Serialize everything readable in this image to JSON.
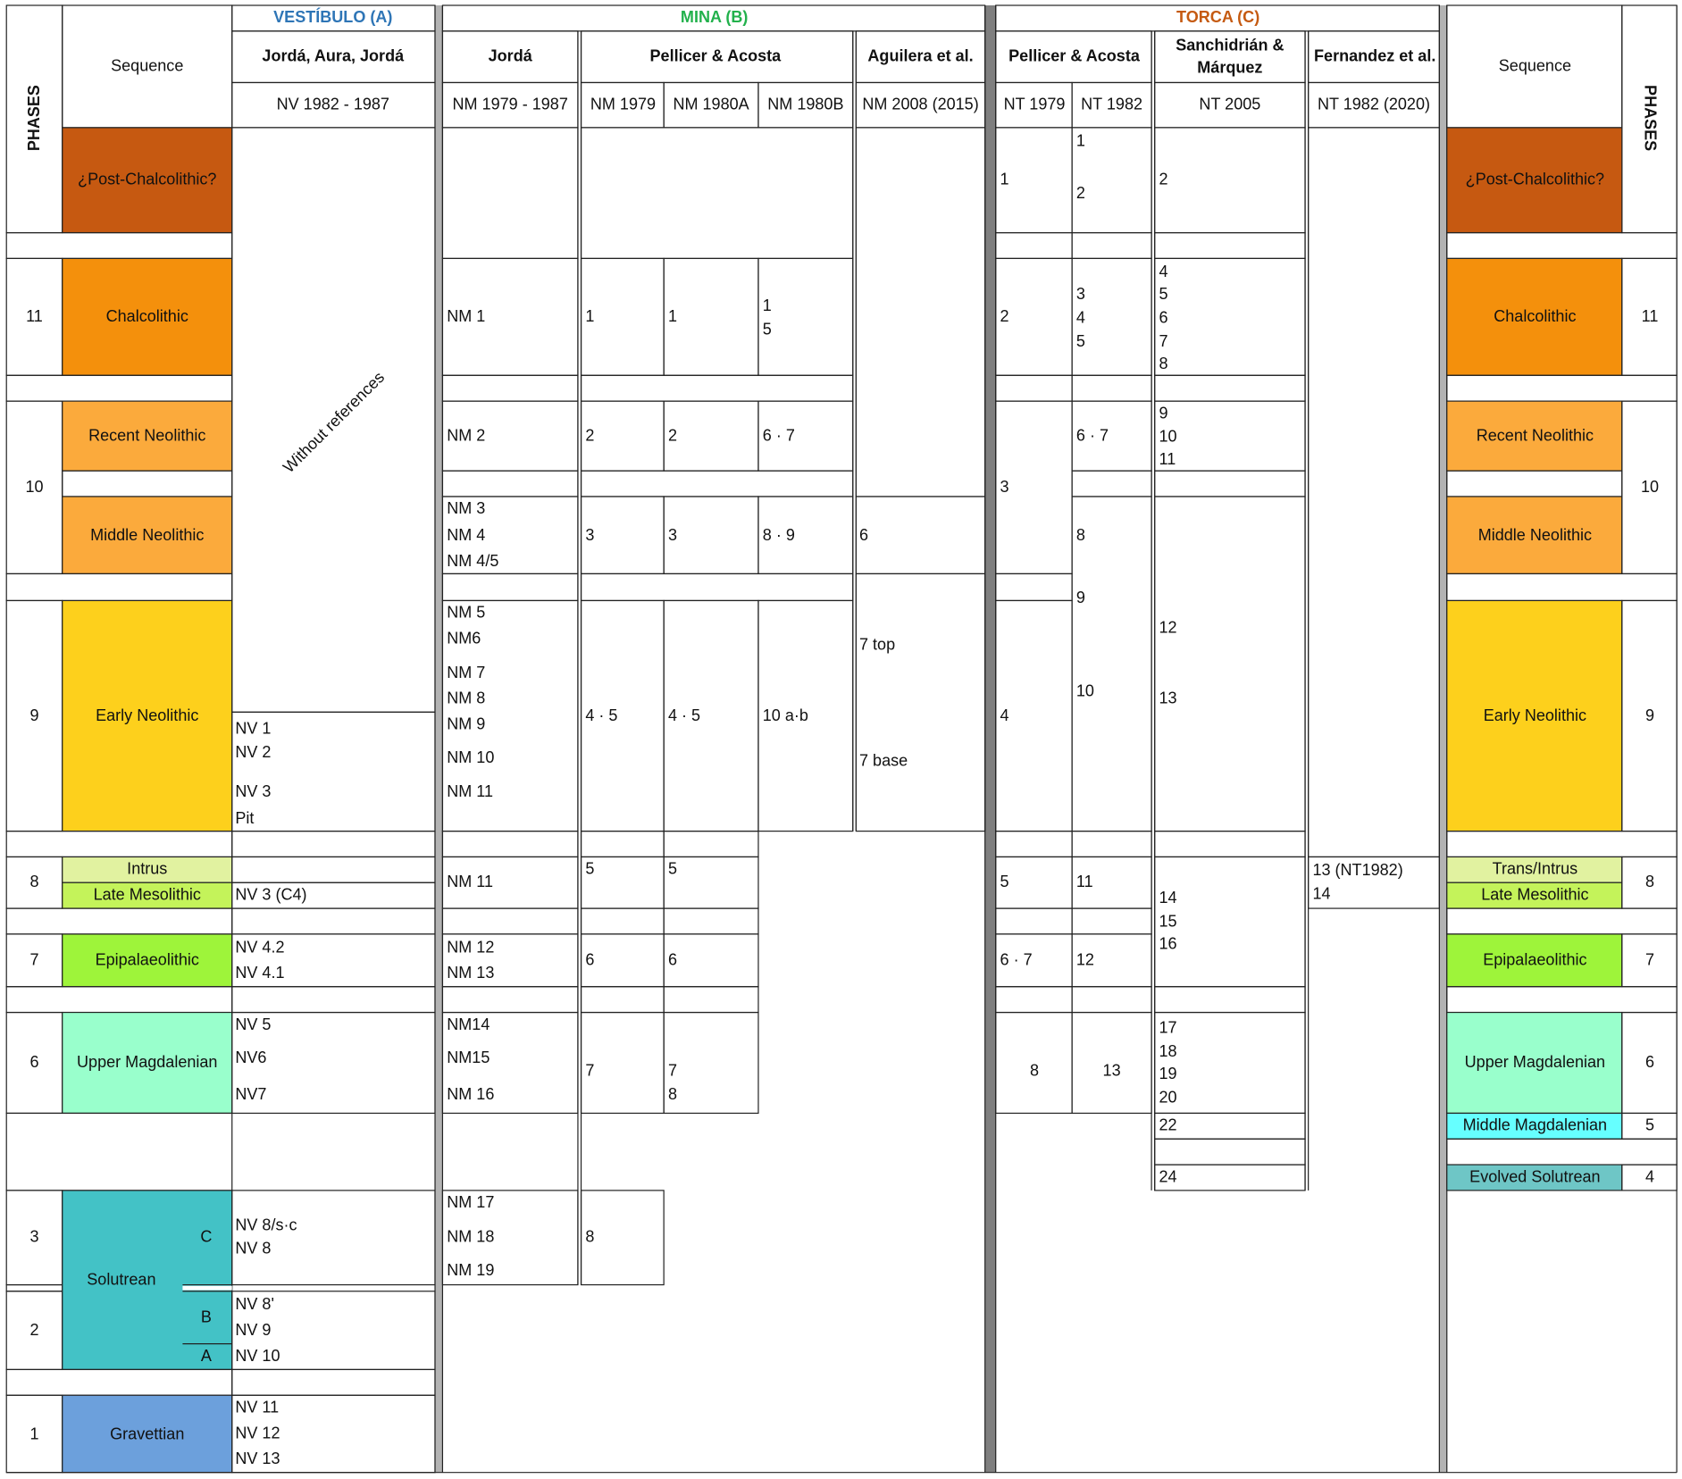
{
  "colors": {
    "vestibulo": "#2e75b6",
    "mina": "#22b14c",
    "torca": "#c55a11",
    "post_chalcolithic": "#c65911",
    "chalcolithic": "#f4900c",
    "neolithic": "#fbaa3c",
    "early_neolithic": "#fdd01c",
    "intrus": "#e1f2a0",
    "late_mesolithic": "#c4f35a",
    "epipalaeolithic": "#9ef43a",
    "upper_magdalenian": "#99ffcc",
    "middle_magdalenian": "#66ffff",
    "solutrean": "#43c2c6",
    "evolved_solutrean": "#6ec6c6",
    "gravettian": "#6ca0dc"
  },
  "header": {
    "phases_label": "PHASES",
    "sequence_label": "Sequence",
    "vestibulo_title": "VESTÍBULO (A)",
    "mina_title": "MINA (B)",
    "torca_title": "TORCA (C)",
    "jorda_aura_jorda": "Jordá, Aura, Jordá",
    "jorda": "Jordá",
    "pellicer_acosta_mina": "Pellicer & Acosta",
    "aguilera": "Aguilera et al.",
    "pellicer_acosta_torca": "Pellicer & Acosta",
    "sanchidrian_1": "Sanchidrián &",
    "sanchidrian_2": "Márquez",
    "fernandez": "Fernandez et al.",
    "nv_1982_1987": "NV 1982 - 1987",
    "nm_1979_1987": "NM 1979 - 1987",
    "nm_1979": "NM 1979",
    "nm_1980a": "NM 1980A",
    "nm_1980b": "NM 1980B",
    "nm_2008": "NM 2008 (2015)",
    "nt_1979": "NT 1979",
    "nt_1982": "NT 1982",
    "nt_2005": "NT 2005",
    "nt_1982_2020": "NT 1982 (2020)"
  },
  "left_phases": {
    "p11": "11",
    "p10": "10",
    "p9": "9",
    "p8": "8",
    "p7": "7",
    "p6": "6",
    "p3": "3",
    "p2": "2",
    "p1": "1"
  },
  "right_phases": {
    "p11": "11",
    "p10": "10",
    "p9": "9",
    "p8": "8",
    "p7": "7",
    "p6": "6",
    "p5": "5",
    "p4": "4"
  },
  "left_sequence": {
    "post_chalcolithic": "¿Post-Chalcolithic?",
    "chalcolithic": "Chalcolithic",
    "recent_neolithic": "Recent Neolithic",
    "middle_neolithic": "Middle Neolithic",
    "early_neolithic": "Early Neolithic",
    "intrus": "Intrus",
    "late_mesolithic": "Late Mesolithic",
    "epipalaeolithic": "Epipalaeolithic",
    "upper_magdalenian": "Upper Magdalenian",
    "solutrean": "Solutrean",
    "sol_c": "C",
    "sol_b": "B",
    "sol_a": "A",
    "gravettian": "Gravettian"
  },
  "right_sequence": {
    "post_chalcolithic": "¿Post-Chalcolithic?",
    "chalcolithic": "Chalcolithic",
    "recent_neolithic": "Recent Neolithic",
    "middle_neolithic": "Middle Neolithic",
    "early_neolithic": "Early Neolithic",
    "trans_intrus": "Trans/Intrus",
    "late_mesolithic": "Late Mesolithic",
    "epipalaeolithic": "Epipalaeolithic",
    "upper_magdalenian": "Upper Magdalenian",
    "middle_magdalenian": "Middle Magdalenian",
    "evolved_solutrean": "Evolved Solutrean"
  },
  "vestibulo": {
    "without_references": "Without references",
    "nv1": "NV 1",
    "nv2": "NV 2",
    "nv3": "NV 3",
    "pit": "Pit",
    "nv3c4": "NV 3 (C4)",
    "nv42": "NV 4.2",
    "nv41": "NV 4.1",
    "nv5": "NV 5",
    "nv6": "NV6",
    "nv7": "NV7",
    "nv8sc": "NV 8/s·c",
    "nv8": "NV 8",
    "nv8p": "NV 8'",
    "nv9": "NV 9",
    "nv10": "NV 10",
    "nv11": "NV 11",
    "nv12": "NV 12",
    "nv13": "NV 13"
  },
  "mina_jorda": {
    "nm1": "NM 1",
    "nm2": "NM 2",
    "nm3": "NM 3",
    "nm4": "NM 4",
    "nm45": "NM 4/5",
    "nm5": "NM 5",
    "nm6": "NM6",
    "nm7": "NM 7",
    "nm8": "NM 8",
    "nm9": "NM 9",
    "nm10": "NM 10",
    "nm11a": "NM 11",
    "nm11b": "NM 11",
    "nm12": "NM 12",
    "nm13": "NM 13",
    "nm14": "NM14",
    "nm15": "NM15",
    "nm16": "NM 16",
    "nm17": "NM 17",
    "nm18": "NM 18",
    "nm19": "NM 19"
  },
  "mina_1979": {
    "chalco": "1",
    "recent": "2",
    "middle": "3",
    "early": "4 · 5",
    "meso": "5",
    "epi": "6",
    "magd": "7",
    "sol": "8"
  },
  "mina_1980a": {
    "chalco": "1",
    "recent": "2",
    "middle": "3",
    "early": "4 · 5",
    "meso": "5",
    "epi": "6",
    "magd7": "7",
    "magd8": "8"
  },
  "mina_1980b": {
    "chalco1": "1",
    "chalco5": "5",
    "recent": "6 · 7",
    "middle": "8 · 9",
    "early": "10 a·b"
  },
  "mina_aguilera": {
    "middle": "6",
    "top": "7 top",
    "base": "7 base"
  },
  "torca_1979": {
    "post": "1",
    "chalco": "2",
    "neo10": "3",
    "early": "4",
    "meso": "5",
    "epi": "6 · 7",
    "magd": "8"
  },
  "torca_1982": {
    "post1": "1",
    "post2": "2",
    "chalco3": "3",
    "chalco4": "4",
    "chalco5": "5",
    "recent": "6 · 7",
    "middle": "8",
    "nine": "9",
    "ten": "10",
    "meso": "11",
    "epi": "12",
    "magd": "13"
  },
  "torca_2005": {
    "post": "2",
    "c4": "4",
    "c5": "5",
    "c6": "6",
    "c7": "7",
    "c8": "8",
    "r9": "9",
    "r10": "10",
    "r11": "11",
    "e12": "12",
    "e13": "13",
    "m14": "14",
    "m15": "15",
    "m16": "16",
    "u17": "17",
    "u18": "18",
    "u19": "19",
    "u20": "20",
    "l22": "22",
    "l24": "24"
  },
  "torca_fernandez": {
    "n13": "13 (NT1982)",
    "n14": "14"
  }
}
